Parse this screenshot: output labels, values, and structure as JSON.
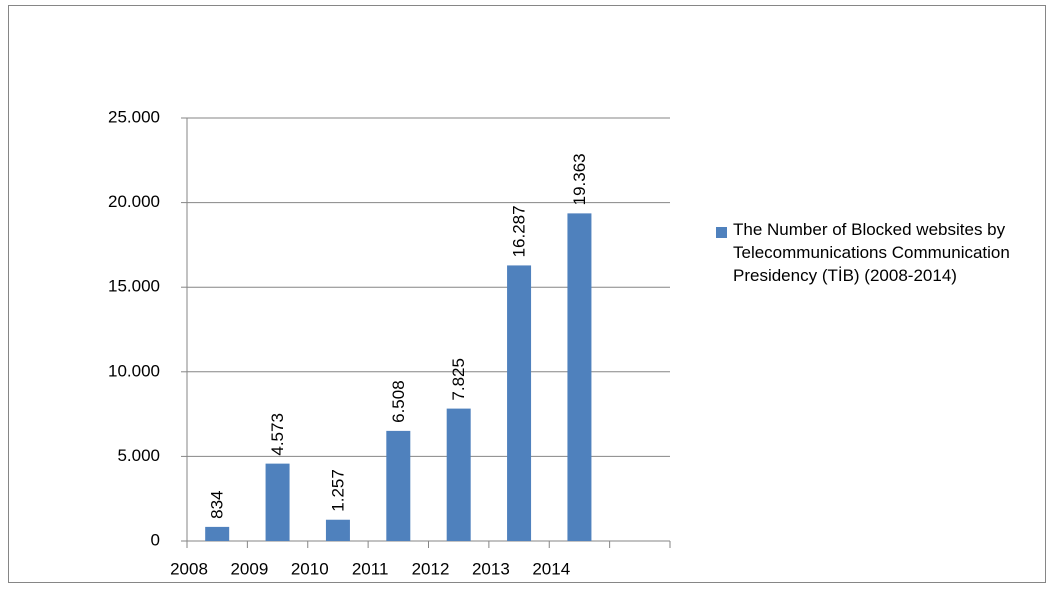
{
  "chart_data": {
    "type": "bar",
    "categories": [
      "2008",
      "2009",
      "2010",
      "2011",
      "2012",
      "2013",
      "2014",
      null
    ],
    "series": [
      {
        "name": "The Number of Blocked websites by Telecommunications Communication Presidency (TİB) (2008-2014)",
        "color": "#4f81bd",
        "values": [
          834,
          4573,
          1257,
          6508,
          7825,
          16287,
          19363,
          null
        ],
        "value_labels": [
          "834",
          "4.573",
          "1.257",
          "6.508",
          "7.825",
          "16.287",
          "19.363",
          null
        ]
      }
    ],
    "ylim": [
      0,
      25000
    ],
    "yticks": [
      0,
      {
        "value": 5000,
        "label": "5.000"
      },
      {
        "value": 10000,
        "label": "10.000"
      },
      {
        "value": 15000,
        "label": "15.000"
      },
      {
        "value": 20000,
        "label": "20.000"
      },
      {
        "value": 25000,
        "label": "25.000"
      }
    ],
    "grid": true,
    "legend": "right"
  }
}
